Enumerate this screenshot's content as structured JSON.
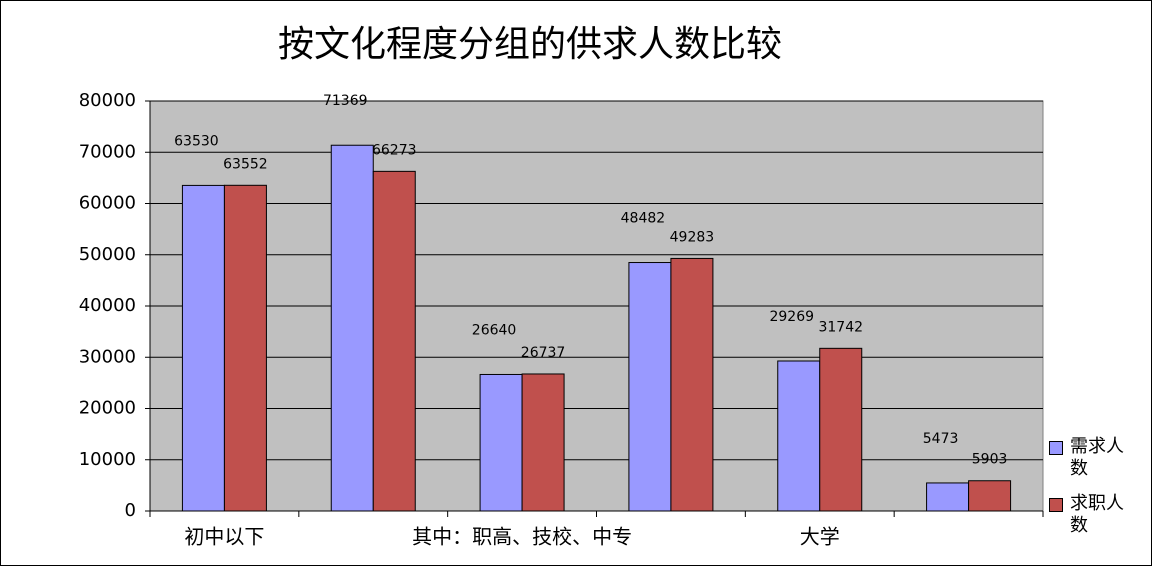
{
  "chart_data": {
    "type": "bar",
    "title": "按文化程度分组的供求人数比较",
    "categories": [
      "初中以下",
      null,
      "其中：职高、技校、中专",
      null,
      "大学",
      null
    ],
    "series": [
      {
        "name": "需求人数",
        "color": "#9999ff",
        "values": [
          63530,
          71369,
          26640,
          48482,
          29269,
          5473
        ]
      },
      {
        "name": "求职人数",
        "color": "#c0504d",
        "values": [
          63552,
          66273,
          26737,
          49283,
          31742,
          5903
        ]
      }
    ],
    "ylim": [
      0,
      80000
    ],
    "yticks": [
      0,
      10000,
      20000,
      30000,
      40000,
      50000,
      60000,
      70000,
      80000
    ],
    "grid": true,
    "legend": "right"
  }
}
